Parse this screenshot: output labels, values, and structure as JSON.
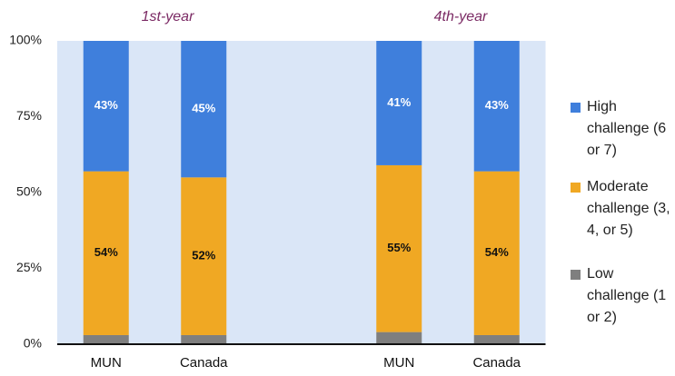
{
  "chart_data": {
    "type": "stacked-bar",
    "groups": [
      "1st-year",
      "4th-year"
    ],
    "categories": [
      "MUN",
      "Canada",
      "MUN",
      "Canada"
    ],
    "series": [
      {
        "name": "Low challenge (1 or 2)",
        "color": "#7f7f7f",
        "values": [
          3,
          3,
          4,
          3
        ]
      },
      {
        "name": "Moderate challenge (3, 4, or 5)",
        "color": "#f0a823",
        "values": [
          54,
          52,
          55,
          54
        ],
        "value_labels": [
          "54%",
          "52%",
          "55%",
          "54%"
        ]
      },
      {
        "name": "High challenge (6 or 7)",
        "color": "#3f7fdc",
        "values": [
          43,
          45,
          41,
          43
        ],
        "value_labels": [
          "43%",
          "45%",
          "41%",
          "43%"
        ]
      }
    ],
    "ylim": [
      0,
      100
    ],
    "yticks": [
      {
        "value": 0,
        "label": "0%"
      },
      {
        "value": 25,
        "label": "25%"
      },
      {
        "value": 50,
        "label": "50%"
      },
      {
        "value": 75,
        "label": "75%"
      },
      {
        "value": 100,
        "label": "100%"
      }
    ],
    "legend": "right"
  }
}
